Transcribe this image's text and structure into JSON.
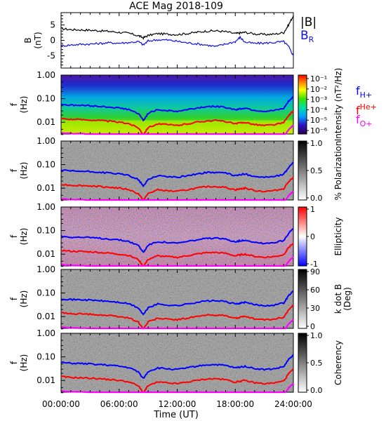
{
  "title": "ACE Mag 2018-109",
  "xlabel": "Time (UT)",
  "time_ticks": [
    "00:00:00",
    "06:00:00",
    "12:00:00",
    "18:00:00",
    "24:00:00"
  ],
  "colors": {
    "B": "#000000",
    "BR": "#1010e0",
    "H": "#0000ff",
    "He": "#ff0000",
    "O": "#ff00ff"
  },
  "legend": {
    "B": "|B|",
    "BR": "B",
    "BR_sub": "R",
    "fH": "f",
    "fH_sub": "H+",
    "fHe": "f",
    "fHe_sup": "He+",
    "fO": "f",
    "fO_sub": "O+"
  },
  "freq_ylabel": "f",
  "freq_yunit": "(Hz)",
  "freq_ticks": [
    "1.00",
    "0.10",
    "0.01"
  ],
  "chart_data": [
    {
      "type": "line",
      "title": "ACE Mag 2018-109",
      "ylabel": "B",
      "yunit": "(nT)",
      "x": [
        0,
        1,
        2,
        3,
        4,
        5,
        6,
        7,
        8,
        8.5,
        9,
        10,
        11,
        12,
        13,
        14,
        15,
        16,
        17,
        18,
        18.5,
        19,
        20,
        21,
        22,
        23,
        23.5,
        24
      ],
      "ylim": [
        -9,
        9
      ],
      "yticks": [
        "5",
        "0",
        "-5"
      ],
      "series": [
        {
          "name": "|B|",
          "color": "#000000",
          "values": [
            3.8,
            3.5,
            3.4,
            3.3,
            3.1,
            2.9,
            2.6,
            2.3,
            1.5,
            0.8,
            1.6,
            2.2,
            2.0,
            1.9,
            2.2,
            2.6,
            3.0,
            3.1,
            2.8,
            2.2,
            2.4,
            2.6,
            2.1,
            1.9,
            2.0,
            2.5,
            5.0,
            8.0
          ]
        },
        {
          "name": "B_R",
          "color": "#1010e0",
          "values": [
            -1.8,
            -1.5,
            -1.3,
            -1.2,
            -1.0,
            -0.8,
            -0.9,
            -0.7,
            -0.4,
            -1.5,
            -0.2,
            0.2,
            0.1,
            -0.3,
            -0.8,
            -1.1,
            -1.5,
            -2.0,
            -1.2,
            -0.4,
            1.0,
            -0.6,
            -1.0,
            -0.9,
            -0.7,
            -0.4,
            -2.0,
            -5.0
          ]
        }
      ]
    },
    {
      "type": "heatmap",
      "ylabel": "f (Hz)",
      "colorbar_label": "Intensity (nT²/Hz)",
      "colorbar_ticks": [
        "10⁻¹",
        "10⁻²",
        "10⁻³",
        "10⁻⁴",
        "10⁻⁵",
        "10⁻⁶"
      ],
      "colorscale": "rainbow"
    },
    {
      "type": "heatmap",
      "ylabel": "f (Hz)",
      "colorbar_label": "% Polarization",
      "colorbar_ticks": [
        "1.0",
        "0.5",
        "0.0"
      ],
      "colorscale": "gray"
    },
    {
      "type": "heatmap",
      "ylabel": "f (Hz)",
      "colorbar_label": "Ellipticity",
      "colorbar_ticks": [
        "1",
        "0",
        "-1"
      ],
      "colorscale": "blue-white-red"
    },
    {
      "type": "heatmap",
      "ylabel": "f (Hz)",
      "colorbar_label": "k dot B (Deg)",
      "colorbar_label_lines": [
        "k dot B",
        "(Deg)"
      ],
      "colorbar_ticks": [
        "90",
        "60",
        "30",
        "0"
      ],
      "colorscale": "gray"
    },
    {
      "type": "heatmap",
      "ylabel": "f (Hz)",
      "colorbar_label": "Coherency",
      "colorbar_ticks": [
        "1.0",
        "0.5",
        "0.0"
      ],
      "colorscale": "gray"
    },
    {
      "type": "line",
      "description": "ion gyrofrequency lines overlaid on each spectral panel",
      "x": [
        0,
        1,
        2,
        3,
        4,
        5,
        6,
        7,
        8,
        8.5,
        9,
        10,
        11,
        12,
        13,
        14,
        15,
        16,
        17,
        18,
        18.5,
        19,
        20,
        21,
        22,
        23,
        23.5,
        24
      ],
      "series": [
        {
          "name": "f_H+",
          "color": "#0000ff",
          "values": [
            0.058,
            0.053,
            0.052,
            0.05,
            0.047,
            0.044,
            0.04,
            0.035,
            0.023,
            0.012,
            0.024,
            0.034,
            0.031,
            0.029,
            0.034,
            0.04,
            0.046,
            0.047,
            0.043,
            0.034,
            0.037,
            0.04,
            0.032,
            0.029,
            0.031,
            0.038,
            0.076,
            0.122
          ]
        },
        {
          "name": "f_He+",
          "color": "#ff0000",
          "values": [
            0.0145,
            0.0133,
            0.013,
            0.0125,
            0.0118,
            0.011,
            0.01,
            0.0088,
            0.0058,
            0.003,
            0.006,
            0.0085,
            0.0078,
            0.0073,
            0.0085,
            0.01,
            0.0115,
            0.0118,
            0.0108,
            0.0085,
            0.0093,
            0.01,
            0.008,
            0.0073,
            0.0078,
            0.0095,
            0.019,
            0.03
          ]
        },
        {
          "name": "f_O+",
          "color": "#ff00ff",
          "values": [
            0.0036,
            0.0033,
            0.0033,
            0.0031,
            0.003,
            0.0028,
            0.0025,
            0.0022,
            0.0015,
            0.0008,
            0.0015,
            0.0021,
            0.002,
            0.0018,
            0.0021,
            0.0025,
            0.0029,
            0.003,
            0.0027,
            0.0021,
            0.0023,
            0.0025,
            0.002,
            0.0018,
            0.002,
            0.0024,
            0.0048,
            0.0076
          ]
        }
      ]
    }
  ]
}
